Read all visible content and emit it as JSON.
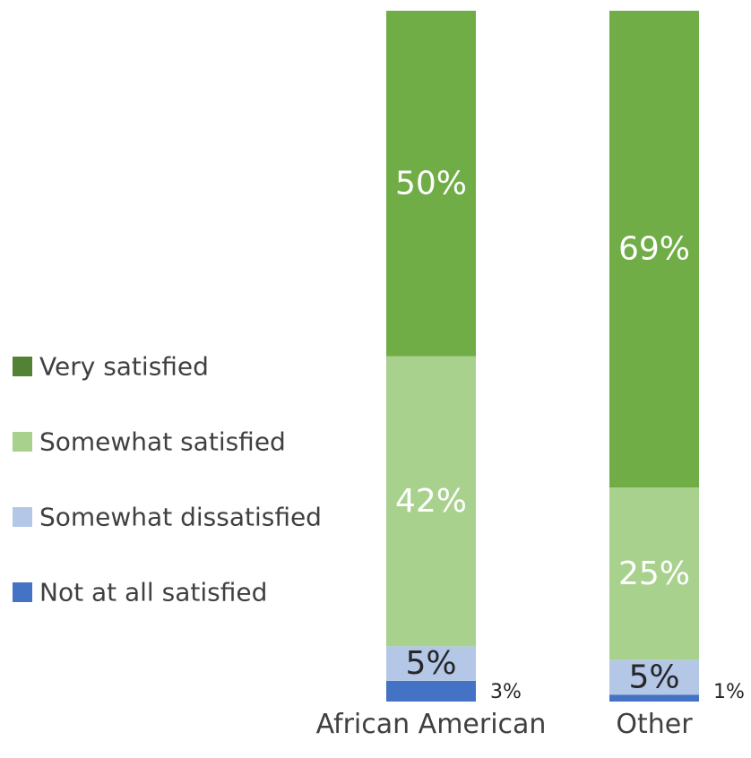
{
  "chart_data": {
    "type": "bar",
    "stacked": true,
    "normalized": true,
    "categories": [
      "African American",
      "Other"
    ],
    "series": [
      {
        "name": "Not at all satisfied",
        "color": "#4472c4",
        "values": [
          3,
          1
        ],
        "labels": [
          "3%",
          "1%"
        ]
      },
      {
        "name": "Somewhat dissatisfied",
        "color": "#b4c7e7",
        "values": [
          5,
          5
        ],
        "labels": [
          "5%",
          "5%"
        ]
      },
      {
        "name": "Somewhat satisfied",
        "color": "#a9d18e",
        "values": [
          42,
          25
        ],
        "labels": [
          "42%",
          "25%"
        ]
      },
      {
        "name": "Very satisfied",
        "color": "#70ad47",
        "values": [
          50,
          69
        ],
        "labels": [
          "50%",
          "69%"
        ]
      }
    ],
    "legend": {
      "position": "left",
      "items": [
        {
          "label": "Very satisfied",
          "color": "#548235"
        },
        {
          "label": "Somewhat satisfied",
          "color": "#a9d18e"
        },
        {
          "label": "Somewhat dissatisfied",
          "color": "#b4c7e7"
        },
        {
          "label": "Not at all satisfied",
          "color": "#4472c4"
        }
      ]
    },
    "title": "",
    "xlabel": "",
    "ylabel": "",
    "ylim": [
      0,
      100
    ],
    "grid": false
  }
}
